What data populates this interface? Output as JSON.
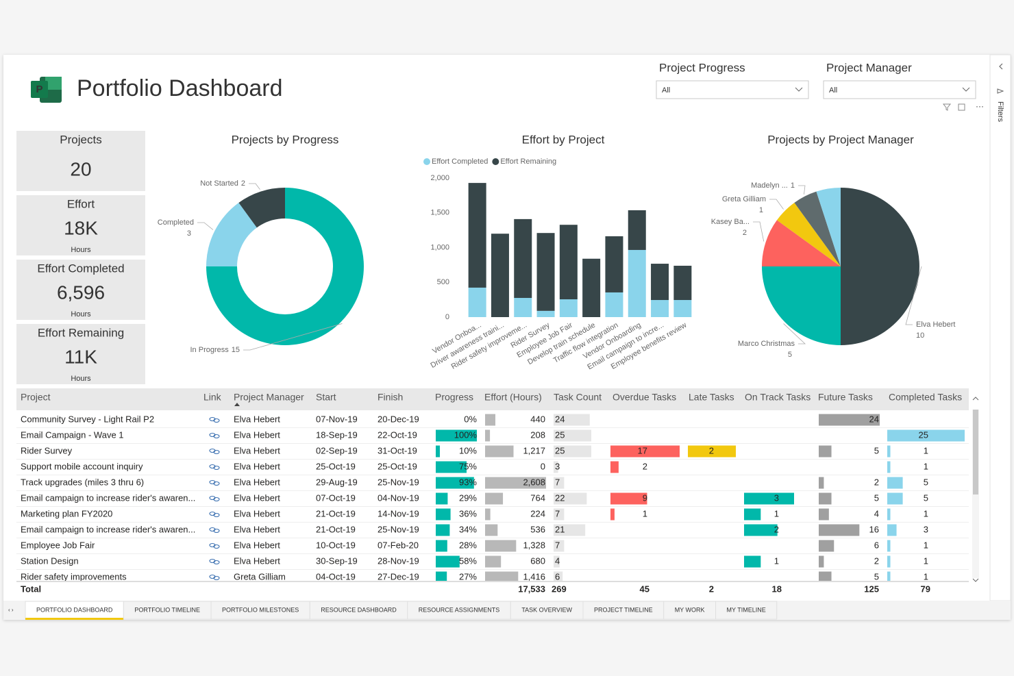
{
  "header": {
    "title": "Portfolio Dashboard"
  },
  "filters": [
    {
      "label": "Project Progress",
      "value": "All"
    },
    {
      "label": "Project Manager",
      "value": "All"
    }
  ],
  "filter_pane": {
    "title": "Filters"
  },
  "kpis": [
    {
      "label": "Projects",
      "value": "20"
    },
    {
      "label": "Effort",
      "value": "18K",
      "unit": "Hours"
    },
    {
      "label": "Effort Completed",
      "value": "6,596",
      "unit": "Hours"
    },
    {
      "label": "Effort Remaining",
      "value": "11K",
      "unit": "Hours"
    }
  ],
  "chart_data": [
    {
      "type": "donut",
      "title": "Projects by Progress",
      "categories": [
        "In Progress",
        "Completed",
        "Not Started"
      ],
      "values": [
        15,
        3,
        2
      ],
      "colors": [
        "#01b8aa",
        "#8ad4eb",
        "#374649"
      ]
    },
    {
      "type": "bar",
      "title": "Effort by Project",
      "stacked": true,
      "categories": [
        "Vendor Onboa...",
        "Driver awareness traini...",
        "Rider safety improveme...",
        "Rider Survey",
        "Employee Job Fair",
        "Develop train schedule",
        "Traffic flow integration",
        "Vendor Onboarding",
        "Email campaign to incre...",
        "Employee benefits review"
      ],
      "series": [
        {
          "name": "Effort Completed",
          "color": "#8ad4eb",
          "values": [
            424,
            0,
            276,
            90,
            256,
            0,
            355,
            966,
            246,
            246
          ]
        },
        {
          "name": "Effort Remaining",
          "color": "#374649",
          "values": [
            1506,
            1200,
            1134,
            1120,
            1072,
            840,
            808,
            571,
            522,
            493
          ]
        }
      ],
      "ylim": [
        0,
        2000
      ],
      "yticks": [
        0,
        500,
        {
          "value": 1000,
          "label": "1,000"
        },
        {
          "value": 1500,
          "label": "1,500"
        },
        {
          "value": 2000,
          "label": "2,000"
        }
      ]
    },
    {
      "type": "pie",
      "title": "Projects by Project Manager",
      "categories": [
        "Elva Hebert",
        "Marco Christmas",
        "Kasey Ba...",
        "Greta Gilliam",
        "Madelyn ...",
        null
      ],
      "values": [
        10,
        5,
        2,
        1,
        1,
        1
      ],
      "colors": [
        "#374649",
        "#01b8aa",
        "#fd625e",
        "#f2c80f",
        "#5f6b6d",
        "#8ad4eb"
      ]
    }
  ],
  "table": {
    "columns": [
      "Project",
      "Link",
      "Project Manager",
      "Start",
      "Finish",
      "Progress",
      "Effort (Hours)",
      "Task Count",
      "Overdue Tasks",
      "Late Tasks",
      "On Track Tasks",
      "Future Tasks",
      "Completed Tasks"
    ],
    "rows": [
      {
        "project": "Community Survey - Light Rail P2",
        "manager": "Elva Hebert",
        "start": "07-Nov-19",
        "finish": "20-Dec-19",
        "progress": {
          "value": 0,
          "label": "0%"
        },
        "effort": 440,
        "task_count": 24,
        "overdue": null,
        "late": null,
        "on_track": null,
        "future": 24,
        "completed": null
      },
      {
        "project": "Email Campaign - Wave 1",
        "manager": "Elva Hebert",
        "start": "18-Sep-19",
        "finish": "22-Oct-19",
        "progress": {
          "value": 100,
          "label": "100%"
        },
        "effort": 208,
        "task_count": 25,
        "overdue": null,
        "late": null,
        "on_track": null,
        "future": null,
        "completed": 25
      },
      {
        "project": "Rider Survey",
        "manager": "Elva Hebert",
        "start": "02-Sep-19",
        "finish": "31-Oct-19",
        "progress": {
          "value": 10,
          "label": "10%"
        },
        "effort": {
          "value": 1217,
          "label": "1,217"
        },
        "task_count": 25,
        "overdue": 17,
        "late": 2,
        "on_track": null,
        "future": 5,
        "completed": 1
      },
      {
        "project": "Support mobile account inquiry",
        "manager": "Elva Hebert",
        "start": "25-Oct-19",
        "finish": "25-Oct-19",
        "progress": {
          "value": 75,
          "label": "75%"
        },
        "effort": 0,
        "task_count": 3,
        "overdue": 2,
        "late": null,
        "on_track": null,
        "future": null,
        "completed": 1
      },
      {
        "project": "Track upgrades (miles 3 thru 6)",
        "manager": "Elva Hebert",
        "start": "29-Aug-19",
        "finish": "25-Nov-19",
        "progress": {
          "value": 93,
          "label": "93%"
        },
        "effort": {
          "value": 2608,
          "label": "2,608"
        },
        "task_count": 7,
        "overdue": null,
        "late": null,
        "on_track": null,
        "future": 2,
        "completed": 5
      },
      {
        "project": "Email campaign to increase rider's awaren...",
        "manager": "Elva Hebert",
        "start": "07-Oct-19",
        "finish": "04-Nov-19",
        "progress": {
          "value": 29,
          "label": "29%"
        },
        "effort": 764,
        "task_count": 22,
        "overdue": 9,
        "late": null,
        "on_track": 3,
        "future": 5,
        "completed": 5
      },
      {
        "project": "Marketing plan FY2020",
        "manager": "Elva Hebert",
        "start": "21-Oct-19",
        "finish": "14-Nov-19",
        "progress": {
          "value": 36,
          "label": "36%"
        },
        "effort": 224,
        "task_count": 7,
        "overdue": 1,
        "late": null,
        "on_track": 1,
        "future": 4,
        "completed": 1
      },
      {
        "project": "Email campaign to increase rider's awaren...",
        "manager": "Elva Hebert",
        "start": "21-Oct-19",
        "finish": "25-Nov-19",
        "progress": {
          "value": 34,
          "label": "34%"
        },
        "effort": 536,
        "task_count": 21,
        "overdue": null,
        "late": null,
        "on_track": 2,
        "future": 16,
        "completed": 3
      },
      {
        "project": "Employee Job Fair",
        "manager": "Elva Hebert",
        "start": "10-Oct-19",
        "finish": "07-Feb-20",
        "progress": {
          "value": 28,
          "label": "28%"
        },
        "effort": {
          "value": 1328,
          "label": "1,328"
        },
        "task_count": 7,
        "overdue": null,
        "late": null,
        "on_track": null,
        "future": 6,
        "completed": 1
      },
      {
        "project": "Station Design",
        "manager": "Elva Hebert",
        "start": "30-Sep-19",
        "finish": "28-Nov-19",
        "progress": {
          "value": 58,
          "label": "58%"
        },
        "effort": 680,
        "task_count": 4,
        "overdue": null,
        "late": null,
        "on_track": 1,
        "future": 2,
        "completed": 1
      },
      {
        "project": "Rider safety improvements",
        "manager": "Greta Gilliam",
        "start": "04-Oct-19",
        "finish": "27-Dec-19",
        "progress": {
          "value": 27,
          "label": "27%"
        },
        "effort": {
          "value": 1416,
          "label": "1,416"
        },
        "task_count": 6,
        "overdue": null,
        "late": null,
        "on_track": null,
        "future": 5,
        "completed": 1
      }
    ],
    "total": {
      "label": "Total",
      "effort": {
        "value": 17533,
        "label": "17,533"
      },
      "task_count": 269,
      "overdue": 45,
      "late": 2,
      "on_track": 18,
      "future": 125,
      "completed": 79
    }
  },
  "tabs": [
    "PORTFOLIO DASHBOARD",
    "PORTFOLIO TIMELINE",
    "PORTFOLIO MILESTONES",
    "RESOURCE DASHBOARD",
    "RESOURCE ASSIGNMENTS",
    "TASK OVERVIEW",
    "PROJECT TIMELINE",
    "MY WORK",
    "MY TIMELINE"
  ]
}
